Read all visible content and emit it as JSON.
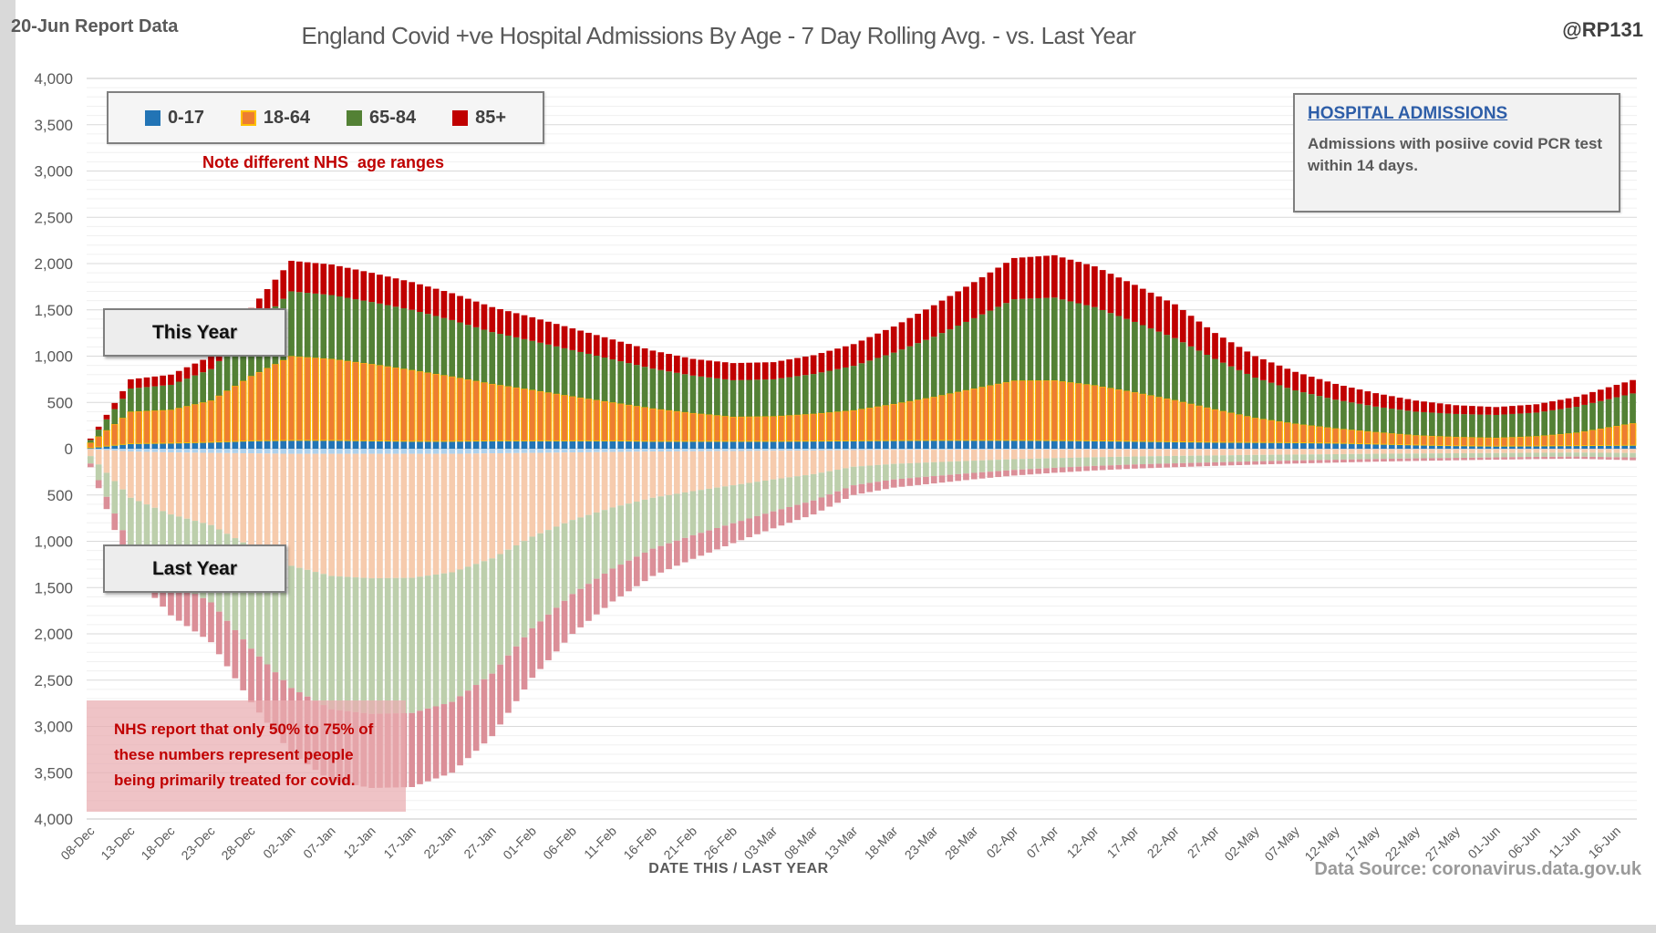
{
  "header": {
    "report_label": "20-Jun Report Data",
    "title": "England Covid +ve Hospital Admissions By Age - 7 Day Rolling Avg. - vs. Last Year",
    "handle": "@RP131"
  },
  "legend": {
    "items": [
      {
        "label": "0-17",
        "color": "#2274b5",
        "border": "#2274b5"
      },
      {
        "label": "18-64",
        "color": "#ed7d31",
        "border": "#ffc000"
      },
      {
        "label": "65-84",
        "color": "#538135",
        "border": "#538135"
      },
      {
        "label": "85+",
        "color": "#c00000",
        "border": "#c00000"
      }
    ],
    "note": "Note different NHS  age ranges"
  },
  "info_box": {
    "title": "HOSPITAL ADMISSIONS",
    "body": "Admissions with posiive covid PCR test within 14 days."
  },
  "series_labels": {
    "top": "This Year",
    "bottom": "Last Year"
  },
  "annotation": {
    "text_lines": [
      "NHS report that only 50% to 75% of",
      "these numbers represent people",
      "being primarily treated for covid."
    ]
  },
  "x_axis": {
    "title": "DATE THIS / LAST YEAR",
    "ticks": [
      "08-Dec",
      "13-Dec",
      "18-Dec",
      "23-Dec",
      "28-Dec",
      "02-Jan",
      "07-Jan",
      "12-Jan",
      "17-Jan",
      "22-Jan",
      "27-Jan",
      "01-Feb",
      "06-Feb",
      "11-Feb",
      "16-Feb",
      "21-Feb",
      "26-Feb",
      "03-Mar",
      "08-Mar",
      "13-Mar",
      "18-Mar",
      "23-Mar",
      "28-Mar",
      "02-Apr",
      "07-Apr",
      "12-Apr",
      "17-Apr",
      "22-Apr",
      "27-Apr",
      "02-May",
      "07-May",
      "12-May",
      "17-May",
      "22-May",
      "27-May",
      "01-Jun",
      "06-Jun",
      "11-Jun",
      "16-Jun"
    ]
  },
  "y_axis": {
    "max": 4000,
    "step": 500,
    "labels": [
      "4,000",
      "3,500",
      "3,000",
      "2,500",
      "2,000",
      "1,500",
      "1,000",
      "500",
      "0",
      "500",
      "1,000",
      "1,500",
      "2,000",
      "2,500",
      "3,000",
      "3,500",
      "4,000"
    ]
  },
  "footer": {
    "source": "Data Source: coronavirus.data.gov.uk"
  },
  "chart_data": {
    "type": "bar",
    "subtype": "mirrored-stacked-daily-bars",
    "title": "England Covid +ve Hospital Admissions By Age - 7 Day Rolling Avg. - vs. Last Year",
    "units": "admissions per day, 7-day rolling average",
    "note": "Values estimated at the 5-day x-axis tick dates; daily bars are linearly interpolated between ticks. Top half = this year, bottom half = last year (mirrored).",
    "ylim": [
      -4000,
      4000
    ],
    "grid": {
      "major_every": 500,
      "minor_every": 100
    },
    "legend_position": "top-left-inside",
    "categories": [
      "08-Dec",
      "13-Dec",
      "18-Dec",
      "23-Dec",
      "28-Dec",
      "02-Jan",
      "07-Jan",
      "12-Jan",
      "17-Jan",
      "22-Jan",
      "27-Jan",
      "01-Feb",
      "06-Feb",
      "11-Feb",
      "16-Feb",
      "21-Feb",
      "26-Feb",
      "03-Mar",
      "08-Mar",
      "13-Mar",
      "18-Mar",
      "23-Mar",
      "28-Mar",
      "02-Apr",
      "07-Apr",
      "12-Apr",
      "17-Apr",
      "22-Apr",
      "27-Apr",
      "02-May",
      "07-May",
      "12-May",
      "17-May",
      "22-May",
      "27-May",
      "01-Jun",
      "06-Jun",
      "11-Jun",
      "16-Jun"
    ],
    "this_year": {
      "series": [
        {
          "name": "0-17",
          "color": "#2274b5",
          "stroke": "#2274b5",
          "values": [
            10,
            55,
            60,
            70,
            85,
            90,
            90,
            85,
            80,
            80,
            85,
            85,
            85,
            85,
            80,
            80,
            80,
            80,
            82,
            85,
            88,
            90,
            90,
            90,
            88,
            85,
            80,
            75,
            70,
            68,
            65,
            60,
            50,
            40,
            32,
            28,
            30,
            33,
            36
          ]
        },
        {
          "name": "18-64",
          "color": "#ed7d31",
          "stroke": "#ffc000",
          "values": [
            55,
            345,
            360,
            450,
            700,
            910,
            880,
            830,
            770,
            700,
            615,
            550,
            480,
            415,
            355,
            305,
            265,
            270,
            295,
            330,
            395,
            470,
            560,
            645,
            650,
            600,
            530,
            450,
            355,
            265,
            205,
            160,
            130,
            105,
            95,
            90,
            105,
            140,
            210
          ]
        },
        {
          "name": "65-84",
          "color": "#538135",
          "stroke": "#538135",
          "values": [
            30,
            250,
            270,
            340,
            510,
            700,
            690,
            670,
            650,
            610,
            560,
            530,
            500,
            465,
            430,
            405,
            395,
            400,
            430,
            480,
            555,
            650,
            760,
            880,
            895,
            845,
            760,
            670,
            545,
            435,
            360,
            310,
            275,
            255,
            248,
            247,
            255,
            280,
            310
          ]
        },
        {
          "name": "85+",
          "color": "#c00000",
          "stroke": "#c00000",
          "values": [
            15,
            100,
            110,
            140,
            225,
            330,
            330,
            315,
            300,
            290,
            270,
            255,
            235,
            215,
            195,
            180,
            185,
            185,
            203,
            235,
            282,
            340,
            390,
            445,
            457,
            440,
            400,
            365,
            280,
            232,
            200,
            170,
            145,
            120,
            95,
            85,
            90,
            107,
            134
          ]
        }
      ]
    },
    "last_year": {
      "series": [
        {
          "name": "0-17",
          "color": "#aed1ec",
          "stroke": "#aed1ec",
          "values": [
            5,
            30,
            40,
            45,
            50,
            55,
            55,
            55,
            55,
            55,
            50,
            45,
            40,
            35,
            30,
            28,
            25,
            22,
            20,
            15,
            12,
            11,
            10,
            9,
            8,
            7,
            6,
            6,
            6,
            5,
            5,
            5,
            4,
            4,
            4,
            4,
            3,
            3,
            3
          ]
        },
        {
          "name": "18-64",
          "color": "#f6cbad",
          "stroke": "#f6cbad",
          "values": [
            75,
            500,
            670,
            780,
            1010,
            1210,
            1320,
            1345,
            1340,
            1280,
            1135,
            905,
            730,
            600,
            500,
            430,
            370,
            310,
            255,
            180,
            152,
            135,
            119,
            104,
            94,
            85,
            78,
            72,
            67,
            62,
            58,
            54,
            51,
            48,
            45,
            43,
            41,
            39,
            42
          ]
        },
        {
          "name": "65-84",
          "color": "#bdcfac",
          "stroke": "#bdcfac",
          "values": [
            80,
            530,
            720,
            835,
            1100,
            1320,
            1440,
            1465,
            1460,
            1400,
            1245,
            990,
            800,
            660,
            550,
            477,
            410,
            345,
            285,
            200,
            168,
            150,
            132,
            116,
            104,
            94,
            86,
            80,
            74,
            69,
            64,
            60,
            56,
            52,
            50,
            47,
            44,
            43,
            47
          ]
        },
        {
          "name": "85+",
          "color": "#db8f98",
          "stroke": "#db8f98",
          "values": [
            40,
            270,
            370,
            430,
            580,
            705,
            775,
            800,
            800,
            765,
            675,
            535,
            430,
            355,
            295,
            255,
            215,
            183,
            150,
            105,
            88,
            79,
            69,
            61,
            54,
            49,
            45,
            42,
            38,
            36,
            33,
            31,
            29,
            28,
            26,
            24,
            24,
            23,
            28
          ]
        }
      ]
    }
  }
}
